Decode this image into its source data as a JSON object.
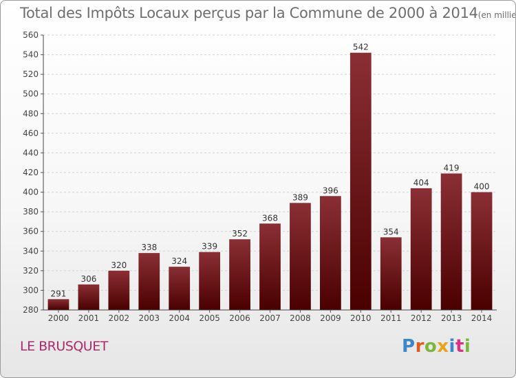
{
  "title": "Total des Impôts Locaux perçus par la Commune de 2000 à 2014",
  "title_unit": "(en milliers d'€)",
  "commune": "LE BRUSQUET",
  "logo": {
    "letters": [
      "P",
      "r",
      "o",
      "x",
      "i",
      "t",
      "i"
    ],
    "colors": [
      "#3c87c8",
      "#e05a1a",
      "#7bb83a",
      "#e8a317",
      "#3c87c8",
      "#d63384",
      "#7bb83a"
    ]
  },
  "chart_data": {
    "type": "bar",
    "title": "Total des Impôts Locaux perçus par la Commune de 2000 à 2014",
    "xlabel": "",
    "ylabel": "",
    "categories": [
      "2000",
      "2001",
      "2002",
      "2003",
      "2004",
      "2005",
      "2006",
      "2007",
      "2008",
      "2009",
      "2010",
      "2011",
      "2012",
      "2013",
      "2014"
    ],
    "values": [
      291,
      306,
      320,
      338,
      324,
      339,
      352,
      368,
      389,
      396,
      542,
      354,
      404,
      419,
      400
    ],
    "ylim": [
      280,
      560
    ],
    "yticks": [
      280,
      300,
      320,
      340,
      360,
      380,
      400,
      420,
      440,
      460,
      480,
      500,
      520,
      540,
      560
    ],
    "grid": true,
    "bar_color_top": "#8a2f35",
    "bar_color_bottom": "#4a0000"
  }
}
